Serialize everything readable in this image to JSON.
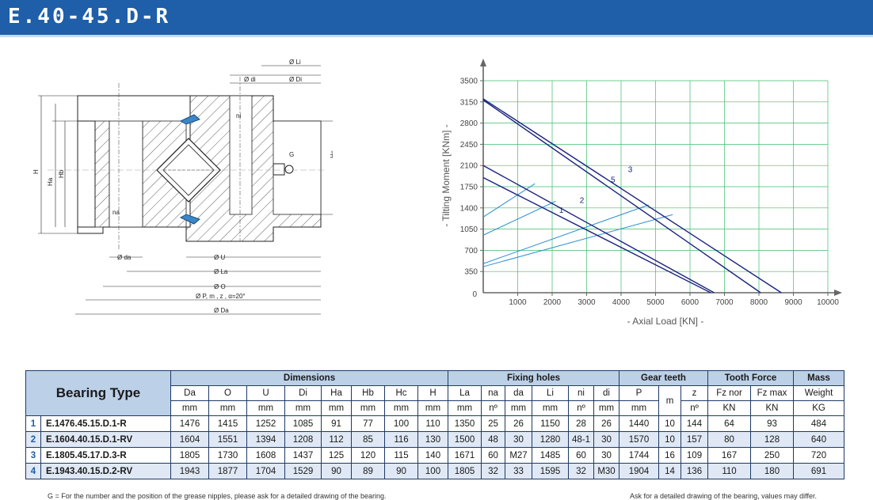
{
  "header": {
    "title": "E.40-45.D-R"
  },
  "drawing": {
    "labels": {
      "li": "Ø Li",
      "di": "Ø di",
      "Di": "Ø Di",
      "ni": "ni",
      "na": "na",
      "G": "G",
      "H": "H",
      "Ha": "Ha",
      "Hb": "Hb",
      "Hc": "Hc",
      "da": "Ø da",
      "U": "Ø U",
      "La": "Ø La",
      "O": "Ø O",
      "pmz": "Ø P, m , z , α=20°",
      "Da": "Ø Da"
    }
  },
  "chart_data": {
    "type": "line",
    "xlabel": "-  Axial Load  [KN]  -",
    "ylabel": "-  Tilting Moment  [KNm]  -",
    "xlim": [
      0,
      10000
    ],
    "ylim": [
      0,
      3500
    ],
    "x_ticks": [
      "1000",
      "2000",
      "3000",
      "4000",
      "5000",
      "6000",
      "7000",
      "8000",
      "9000",
      "10000"
    ],
    "y_ticks": [
      "350",
      "700",
      "1050",
      "1400",
      "1750",
      "2100",
      "2450",
      "2800",
      "3150",
      "3500"
    ],
    "origin_label": "0",
    "grid": true,
    "series": [
      {
        "name": "1",
        "points": [
          [
            0,
            1900
          ],
          [
            6600,
            0
          ]
        ]
      },
      {
        "name": "2",
        "points": [
          [
            0,
            2100
          ],
          [
            6700,
            0
          ]
        ]
      },
      {
        "name": "5",
        "points": [
          [
            0,
            3180
          ],
          [
            8050,
            0
          ]
        ]
      },
      {
        "name": "3",
        "points": [
          [
            0,
            3200
          ],
          [
            8650,
            0
          ]
        ]
      }
    ],
    "series_label_positions": [
      [
        2200,
        1320
      ],
      [
        2800,
        1480
      ],
      [
        3700,
        1820
      ],
      [
        4200,
        1990
      ]
    ],
    "limit_lines": [
      {
        "points": [
          [
            0,
            1250
          ],
          [
            1500,
            1800
          ]
        ]
      },
      {
        "points": [
          [
            0,
            950
          ],
          [
            2100,
            1510
          ]
        ]
      },
      {
        "points": [
          [
            0,
            480
          ],
          [
            4800,
            1450
          ]
        ]
      },
      {
        "points": [
          [
            0,
            430
          ],
          [
            5500,
            1290
          ]
        ]
      }
    ]
  },
  "table": {
    "bearing_type_label": "Bearing Type",
    "groups": {
      "dimensions": "Dimensions",
      "fixing": "Fixing holes",
      "gear": "Gear teeth",
      "tooth": "Tooth Force",
      "mass": "Mass"
    },
    "columns": [
      {
        "name": "Da",
        "unit": "mm"
      },
      {
        "name": "O",
        "unit": "mm"
      },
      {
        "name": "U",
        "unit": "mm"
      },
      {
        "name": "Di",
        "unit": "mm"
      },
      {
        "name": "Ha",
        "unit": "mm"
      },
      {
        "name": "Hb",
        "unit": "mm"
      },
      {
        "name": "Hc",
        "unit": "mm"
      },
      {
        "name": "H",
        "unit": "mm"
      },
      {
        "name": "La",
        "unit": "mm"
      },
      {
        "name": "na",
        "unit": "nº"
      },
      {
        "name": "da",
        "unit": "mm"
      },
      {
        "name": "Li",
        "unit": "mm"
      },
      {
        "name": "ni",
        "unit": "nº"
      },
      {
        "name": "di",
        "unit": "mm"
      },
      {
        "name": "P",
        "unit": "mm"
      },
      {
        "name": "m",
        "unit": ""
      },
      {
        "name": "z",
        "unit": "nº"
      },
      {
        "name": "Fz nor",
        "unit": "KN"
      },
      {
        "name": "Fz max",
        "unit": "KN"
      },
      {
        "name": "Weight",
        "unit": "KG"
      }
    ],
    "rows": [
      {
        "idx": "1",
        "name": "E.1476.45.15.D.1-R",
        "values": [
          "1476",
          "1415",
          "1252",
          "1085",
          "91",
          "77",
          "100",
          "110",
          "1350",
          "25",
          "26",
          "1150",
          "28",
          "26",
          "1440",
          "10",
          "144",
          "64",
          "93",
          "484"
        ]
      },
      {
        "idx": "2",
        "name": "E.1604.40.15.D.1-RV",
        "values": [
          "1604",
          "1551",
          "1394",
          "1208",
          "112",
          "85",
          "116",
          "130",
          "1500",
          "48",
          "30",
          "1280",
          "48-1",
          "30",
          "1570",
          "10",
          "157",
          "80",
          "128",
          "640"
        ]
      },
      {
        "idx": "3",
        "name": "E.1805.45.17.D.3-R",
        "values": [
          "1805",
          "1730",
          "1608",
          "1437",
          "125",
          "120",
          "115",
          "140",
          "1671",
          "60",
          "M27",
          "1485",
          "60",
          "30",
          "1744",
          "16",
          "109",
          "167",
          "250",
          "720"
        ]
      },
      {
        "idx": "4",
        "name": "E.1943.40.15.D.2-RV",
        "values": [
          "1943",
          "1877",
          "1704",
          "1529",
          "90",
          "89",
          "90",
          "100",
          "1805",
          "32",
          "33",
          "1595",
          "32",
          "M30",
          "1904",
          "14",
          "136",
          "110",
          "180",
          "691"
        ]
      }
    ]
  },
  "footer": {
    "left": "G = For the number and the position of the grease nipples, please ask for a detailed drawing of the bearing.",
    "right": "Ask for a detailed drawing of the bearing, values may differ."
  }
}
